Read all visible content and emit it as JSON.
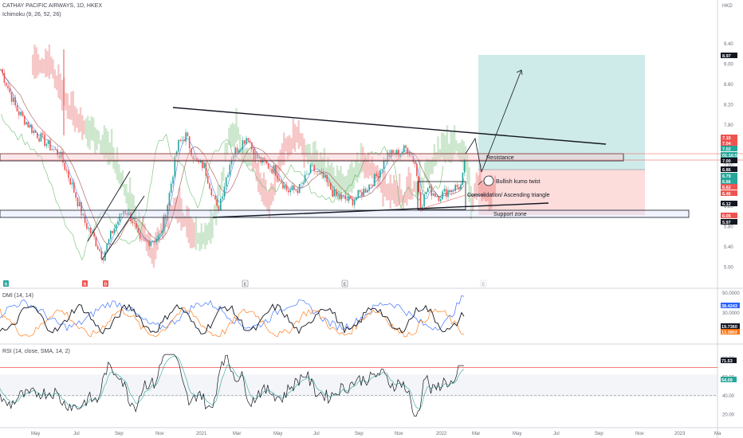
{
  "header": {
    "title": "CATHAY PACIFIC AIRWAYS, 1D, HKEX",
    "indicator": "Ichimoku (9, 26, 52, 26)",
    "currency": "HKD"
  },
  "chart_data": [
    {
      "type": "candlestick",
      "ylim": [
        4.9,
        10.0
      ],
      "y_ticks": [
        "9.40",
        "9.00",
        "8.60",
        "8.20",
        "7.80",
        "7.40",
        "7.00",
        "6.60",
        "6.20",
        "5.80",
        "5.40",
        "5.00"
      ],
      "price_path": [
        [
          0,
          8.9
        ],
        [
          20,
          8.1
        ],
        [
          40,
          7.7
        ],
        [
          60,
          7.4
        ],
        [
          75,
          7.2
        ],
        [
          90,
          6.6
        ],
        [
          105,
          5.9
        ],
        [
          118,
          5.55
        ],
        [
          128,
          5.2
        ],
        [
          140,
          5.7
        ],
        [
          155,
          6.15
        ],
        [
          165,
          5.95
        ],
        [
          175,
          5.45
        ],
        [
          190,
          5.55
        ],
        [
          200,
          5.6
        ],
        [
          210,
          6.3
        ],
        [
          222,
          7.4
        ],
        [
          232,
          7.6
        ],
        [
          245,
          7.05
        ],
        [
          255,
          7.0
        ],
        [
          265,
          6.5
        ],
        [
          272,
          6.1
        ],
        [
          280,
          6.6
        ],
        [
          290,
          7.2
        ],
        [
          300,
          7.4
        ],
        [
          310,
          7.6
        ],
        [
          318,
          7.2
        ],
        [
          330,
          7.05
        ],
        [
          345,
          6.9
        ],
        [
          360,
          6.5
        ],
        [
          375,
          6.55
        ],
        [
          390,
          6.95
        ],
        [
          405,
          6.75
        ],
        [
          420,
          6.4
        ],
        [
          440,
          6.3
        ],
        [
          455,
          6.5
        ],
        [
          470,
          6.75
        ],
        [
          485,
          7.2
        ],
        [
          500,
          7.25
        ],
        [
          510,
          7.35
        ],
        [
          520,
          7.05
        ],
        [
          527,
          6.2
        ],
        [
          535,
          6.55
        ],
        [
          550,
          6.4
        ],
        [
          565,
          6.55
        ],
        [
          578,
          6.6
        ],
        [
          583,
          7.15
        ]
      ],
      "price_labels": [
        {
          "value": "8.97",
          "color": "#131722"
        },
        {
          "value": "7.15",
          "color": "#ef5350"
        },
        {
          "value": "7.04",
          "color": "#ef5350"
        },
        {
          "value": "7.02",
          "color": "#26a69a"
        },
        {
          "value": "01:16:56",
          "color": "#26a69a"
        },
        {
          "value": "7.00",
          "color": "#131722"
        },
        {
          "value": "6.86",
          "color": "#131722"
        },
        {
          "value": "6.79",
          "color": "#26a69a"
        },
        {
          "value": "6.66",
          "color": "#26a69a"
        },
        {
          "value": "6.62",
          "color": "#ef5350"
        },
        {
          "value": "6.46",
          "color": "#ef5350"
        },
        {
          "value": "6.12",
          "color": "#131722"
        },
        {
          "value": "6.05",
          "color": "#ef5350"
        },
        {
          "value": "5.97",
          "color": "#131722"
        }
      ],
      "annotations": [
        "Resistance",
        "Bullish kumo twist",
        "Consolidation/ Ascending triangle",
        "Support zone"
      ],
      "event_badges": [
        "S",
        "S",
        "D",
        "E",
        "E",
        "E"
      ]
    },
    {
      "type": "line",
      "title": "DMI (14, 14)",
      "ylim": [
        5,
        55
      ],
      "y_ticks": [
        "50.0000",
        "30.0000"
      ],
      "series": [
        {
          "color": "#2962ff"
        },
        {
          "color": "#ff6d00"
        },
        {
          "color": "#131722"
        }
      ],
      "last_values": [
        {
          "value": "38.4243",
          "color": "#2962ff"
        },
        {
          "value": "19.7360",
          "color": "#131722"
        },
        {
          "value": "13.3802",
          "color": "#ff6d00"
        }
      ]
    },
    {
      "type": "line",
      "title": "RSI (14, close, SMA, 14, 2)",
      "ylim": [
        10,
        90
      ],
      "y_ticks": [
        "80.00",
        "60.00",
        "40.00",
        "20.00"
      ],
      "levels": [
        70,
        50,
        40
      ],
      "last_values": [
        {
          "value": "71.53",
          "color": "#131722"
        },
        {
          "value": "54.09",
          "color": "#26a69a"
        }
      ]
    }
  ],
  "x_axis": [
    "May",
    "Jul",
    "Sep",
    "Nov",
    "2021",
    "Mar",
    "May",
    "Jul",
    "Sep",
    "Nov",
    "2022",
    "Mar",
    "May",
    "Jul",
    "Sep",
    "Nov",
    "2023",
    "Ma"
  ],
  "colors": {
    "up": "#26a69a",
    "down": "#ef5350",
    "cloud_bull": "#a5d6a7",
    "cloud_bear": "#ef9a9a"
  }
}
